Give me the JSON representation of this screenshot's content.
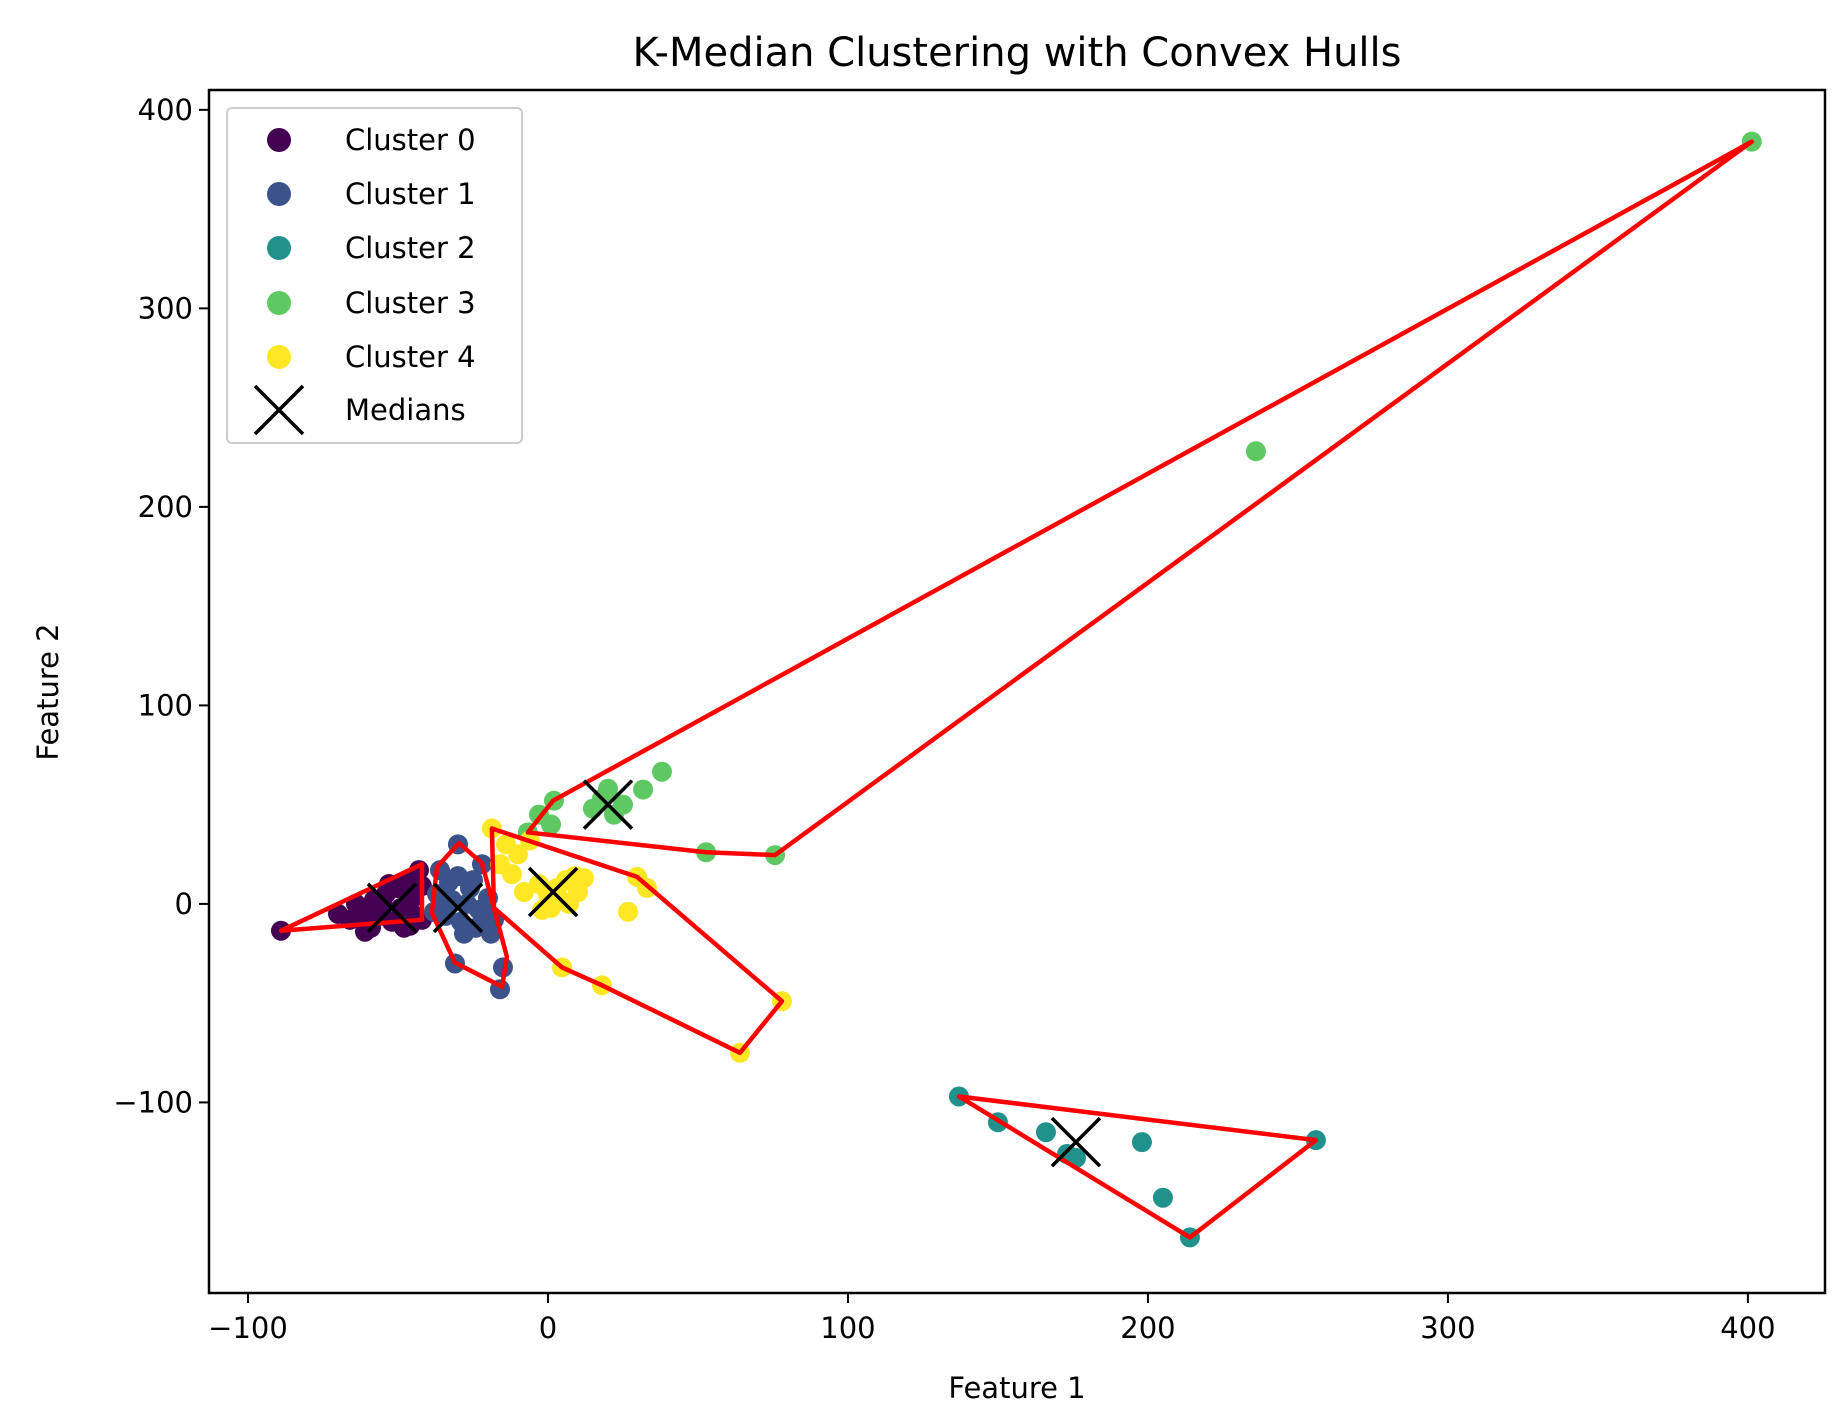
{
  "chart_data": {
    "type": "scatter",
    "title": "K-Median Clustering with Convex Hulls",
    "xlabel": "Feature 1",
    "ylabel": "Feature 2",
    "xlim": [
      -113,
      425.7
    ],
    "ylim": [
      -196,
      410
    ],
    "xticks": [
      -100,
      0,
      100,
      200,
      300,
      400
    ],
    "yticks": [
      -100,
      0,
      100,
      200,
      300,
      400
    ],
    "xtick_labels": [
      "−100",
      "0",
      "100",
      "200",
      "300",
      "400"
    ],
    "ytick_labels": [
      "−100",
      "0",
      "100",
      "200",
      "300",
      "400"
    ],
    "grid": false,
    "legend_position": "upper left",
    "hull_color": "#ff0000",
    "median_color": "#000000",
    "series": [
      {
        "name": "Cluster 0",
        "color": "#440154",
        "points": [
          [
            -89,
            -13.5
          ],
          [
            -70,
            -5
          ],
          [
            -66,
            -8
          ],
          [
            -63,
            -3
          ],
          [
            -60,
            -10
          ],
          [
            -61,
            -14
          ],
          [
            -58,
            2
          ],
          [
            -56,
            -6
          ],
          [
            -54,
            5
          ],
          [
            -52,
            -9
          ],
          [
            -50,
            8
          ],
          [
            -49,
            -2
          ],
          [
            -47,
            12
          ],
          [
            -46,
            -11
          ],
          [
            -45,
            3
          ],
          [
            -44,
            -6
          ],
          [
            -43,
            17
          ],
          [
            -42,
            9
          ],
          [
            -42,
            -8
          ],
          [
            -48,
            -12
          ],
          [
            -55,
            -1
          ],
          [
            -64,
            0
          ],
          [
            -59,
            -12
          ],
          [
            -53,
            10
          ],
          [
            -57,
            -4
          ]
        ],
        "hull": [
          [
            -89,
            -13.5
          ],
          [
            -42,
            20
          ],
          [
            -42,
            -8
          ]
        ],
        "median": [
          -52,
          -2
        ]
      },
      {
        "name": "Cluster 1",
        "color": "#3b528b",
        "points": [
          [
            -30,
            30
          ],
          [
            -22,
            20
          ],
          [
            -36,
            17
          ],
          [
            -30,
            14
          ],
          [
            -25,
            12
          ],
          [
            -37,
            5
          ],
          [
            -32,
            2
          ],
          [
            -27,
            0
          ],
          [
            -23,
            -3
          ],
          [
            -20,
            3
          ],
          [
            -34,
            -6
          ],
          [
            -29,
            -9
          ],
          [
            -24,
            -12
          ],
          [
            -19,
            -15
          ],
          [
            -38,
            -4
          ],
          [
            -31,
            -30
          ],
          [
            -15,
            -32
          ],
          [
            -16,
            -43
          ],
          [
            -21,
            -5
          ],
          [
            -26,
            8
          ],
          [
            -33,
            11
          ],
          [
            -28,
            -15
          ],
          [
            -18,
            -8
          ],
          [
            -35,
            -2
          ]
        ],
        "hull": [
          [
            -29.7,
            30.6
          ],
          [
            -22,
            20.6
          ],
          [
            -13.7,
            -26.6
          ],
          [
            -15.3,
            -41.7
          ],
          [
            -31,
            -29.6
          ],
          [
            -38.7,
            -4.5
          ],
          [
            -37,
            18.6
          ]
        ],
        "median": [
          -30,
          -2
        ]
      },
      {
        "name": "Cluster 2",
        "color": "#21918c",
        "points": [
          [
            137,
            -97
          ],
          [
            150,
            -110
          ],
          [
            166,
            -115
          ],
          [
            173,
            -126
          ],
          [
            176,
            -128
          ],
          [
            198,
            -120
          ],
          [
            205,
            -148
          ],
          [
            214,
            -168
          ],
          [
            256,
            -119
          ]
        ],
        "hull": [
          [
            137,
            -97
          ],
          [
            214,
            -168
          ],
          [
            256,
            -119
          ]
        ],
        "median": [
          176,
          -120
        ]
      },
      {
        "name": "Cluster 3",
        "color": "#5ec962",
        "points": [
          [
            401.3,
            384
          ],
          [
            236,
            228
          ],
          [
            38,
            66.6
          ],
          [
            31.7,
            57.6
          ],
          [
            20,
            58
          ],
          [
            15,
            48
          ],
          [
            22,
            45
          ],
          [
            2,
            52
          ],
          [
            -3,
            45
          ],
          [
            -6.7,
            36
          ],
          [
            1,
            40
          ],
          [
            52.7,
            26
          ],
          [
            75.7,
            24.6
          ],
          [
            18,
            53
          ],
          [
            25,
            50
          ]
        ],
        "hull": [
          [
            -6.7,
            36
          ],
          [
            1.7,
            52
          ],
          [
            401.3,
            384
          ],
          [
            75.7,
            24.6
          ],
          [
            52.7,
            26
          ]
        ],
        "median": [
          20,
          50
        ]
      },
      {
        "name": "Cluster 4",
        "color": "#fde725",
        "points": [
          [
            -18.7,
            38
          ],
          [
            -14,
            30
          ],
          [
            -10,
            25
          ],
          [
            -6,
            32
          ],
          [
            -3,
            10
          ],
          [
            0,
            5
          ],
          [
            3,
            8
          ],
          [
            6,
            12
          ],
          [
            9,
            14
          ],
          [
            12,
            13
          ],
          [
            -2,
            -3
          ],
          [
            1,
            -2
          ],
          [
            4,
            2
          ],
          [
            7,
            0
          ],
          [
            -8,
            6
          ],
          [
            26.7,
            -4
          ],
          [
            29.7,
            13.6
          ],
          [
            33,
            8
          ],
          [
            78,
            -49
          ],
          [
            64,
            -75
          ],
          [
            18,
            -41
          ],
          [
            4.7,
            -32
          ],
          [
            -16,
            20
          ],
          [
            -12,
            15
          ],
          [
            10,
            6
          ]
        ],
        "hull": [
          [
            -18.7,
            38
          ],
          [
            29.7,
            13.6
          ],
          [
            78,
            -49
          ],
          [
            64,
            -75
          ],
          [
            18,
            -41
          ],
          [
            4.7,
            -32
          ],
          [
            -18,
            -2
          ]
        ],
        "median": [
          1.7,
          6
        ]
      }
    ],
    "medians_label": "Medians"
  },
  "legend": {
    "items": [
      {
        "label": "Cluster 0",
        "color": "#440154",
        "marker": "circle"
      },
      {
        "label": "Cluster 1",
        "color": "#3b528b",
        "marker": "circle"
      },
      {
        "label": "Cluster 2",
        "color": "#21918c",
        "marker": "circle"
      },
      {
        "label": "Cluster 3",
        "color": "#5ec962",
        "marker": "circle"
      },
      {
        "label": "Cluster 4",
        "color": "#fde725",
        "marker": "circle"
      },
      {
        "label": "Medians",
        "color": "#000000",
        "marker": "x"
      }
    ]
  }
}
